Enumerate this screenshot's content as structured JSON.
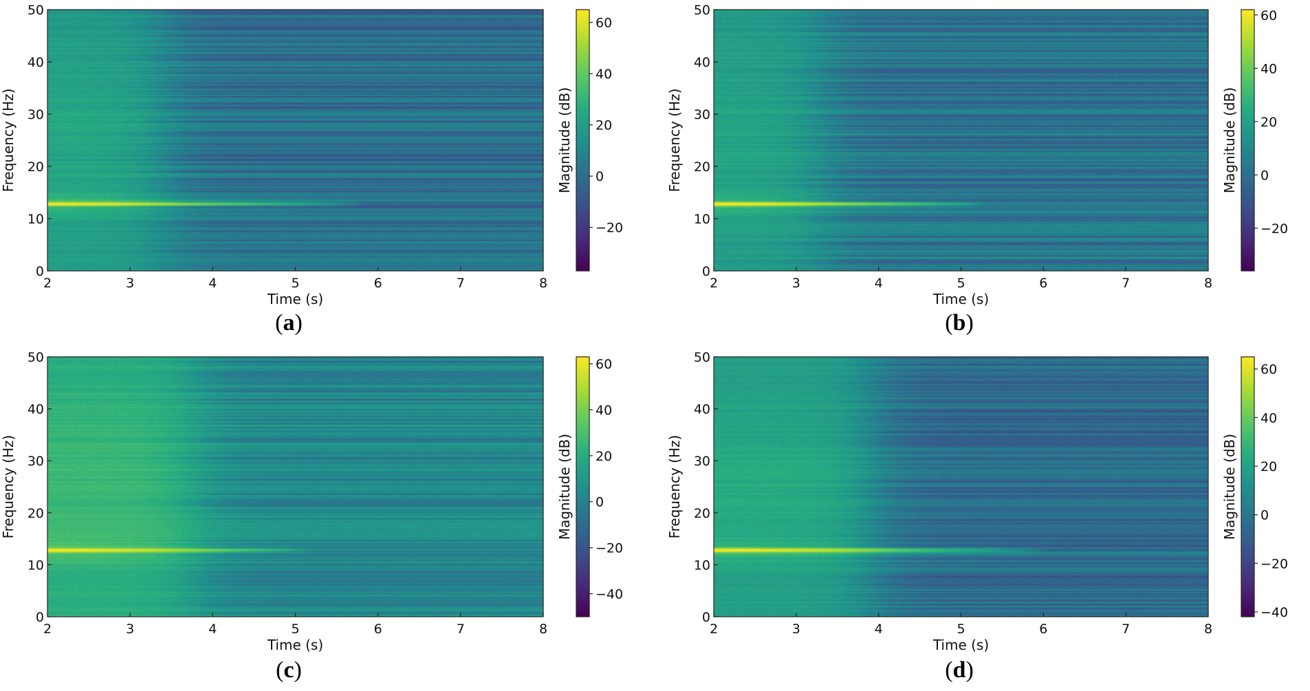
{
  "figure": {
    "colormap": "viridis",
    "colormap_stops": [
      "#440154",
      "#472c7a",
      "#3b518b",
      "#2c718e",
      "#21908d",
      "#27ad81",
      "#5cc863",
      "#aadc32",
      "#fde725"
    ]
  },
  "chart_data": [
    {
      "type": "heatmap",
      "panel": "a",
      "caption": "(a)",
      "xlabel": "Time (s)",
      "ylabel": "Frequency (Hz)",
      "colorbar_label": "Magnitude (dB)",
      "xlim": [
        2,
        8
      ],
      "ylim": [
        0,
        50
      ],
      "xticks": [
        "2",
        "3",
        "4",
        "5",
        "6",
        "7",
        "8"
      ],
      "yticks": [
        "0",
        "10",
        "20",
        "30",
        "40",
        "50"
      ],
      "clim": [
        -37,
        65
      ],
      "colorbar_ticks": [
        "−20",
        "0",
        "20",
        "40",
        "60"
      ],
      "colorbar_tick_values": [
        -20,
        0,
        20,
        40,
        60
      ],
      "peak_frequency_hz": 12.8,
      "peak_level_db": 62,
      "peak_fade_end_s": 5.8,
      "broadband_level_db": 24,
      "broadband_fade_s": 3.4,
      "background_level_db": 0
    },
    {
      "type": "heatmap",
      "panel": "b",
      "caption": "(b)",
      "xlabel": "Time (s)",
      "ylabel": "Frequency (Hz)",
      "colorbar_label": "Magnitude (dB)",
      "xlim": [
        2,
        8
      ],
      "ylim": [
        0,
        50
      ],
      "xticks": [
        "2",
        "3",
        "4",
        "5",
        "6",
        "7",
        "8"
      ],
      "yticks": [
        "0",
        "10",
        "20",
        "30",
        "40",
        "50"
      ],
      "clim": [
        -36,
        62
      ],
      "colorbar_ticks": [
        "−20",
        "0",
        "20",
        "40",
        "60"
      ],
      "colorbar_tick_values": [
        -20,
        0,
        20,
        40,
        60
      ],
      "peak_frequency_hz": 12.8,
      "peak_level_db": 60,
      "peak_fade_end_s": 5.3,
      "broadband_level_db": 22,
      "broadband_fade_s": 3.3,
      "background_level_db": 2
    },
    {
      "type": "heatmap",
      "panel": "c",
      "caption": "(c)",
      "xlabel": "Time (s)",
      "ylabel": "Frequency (Hz)",
      "colorbar_label": "Magnitude (dB)",
      "xlim": [
        2,
        8
      ],
      "ylim": [
        0,
        50
      ],
      "xticks": [
        "2",
        "3",
        "4",
        "5",
        "6",
        "7",
        "8"
      ],
      "yticks": [
        "0",
        "10",
        "20",
        "30",
        "40",
        "50"
      ],
      "clim": [
        -50,
        63
      ],
      "colorbar_ticks": [
        "−40",
        "−20",
        "0",
        "20",
        "40",
        "60"
      ],
      "colorbar_tick_values": [
        -40,
        -20,
        0,
        20,
        40,
        60
      ],
      "peak_frequency_hz": 12.8,
      "peak_level_db": 60,
      "peak_fade_end_s": 5.2,
      "broadband_level_db": 26,
      "broadband_fade_s": 3.8,
      "background_level_db": 2
    },
    {
      "type": "heatmap",
      "panel": "d",
      "caption": "(d)",
      "xlabel": "Time (s)",
      "ylabel": "Frequency (Hz)",
      "colorbar_label": "Magnitude (dB)",
      "xlim": [
        2,
        8
      ],
      "ylim": [
        0,
        50
      ],
      "xticks": [
        "2",
        "3",
        "4",
        "5",
        "6",
        "7",
        "8"
      ],
      "yticks": [
        "0",
        "10",
        "20",
        "30",
        "40",
        "50"
      ],
      "clim": [
        -42,
        65
      ],
      "colorbar_ticks": [
        "−40",
        "−20",
        "0",
        "20",
        "40",
        "60"
      ],
      "colorbar_tick_values": [
        -40,
        -20,
        0,
        20,
        40,
        60
      ],
      "peak_frequency_hz": 12.8,
      "peak_level_db": 62,
      "peak_fade_end_s": 6.0,
      "broadband_level_db": 24,
      "broadband_fade_s": 3.9,
      "background_level_db": -4
    }
  ]
}
